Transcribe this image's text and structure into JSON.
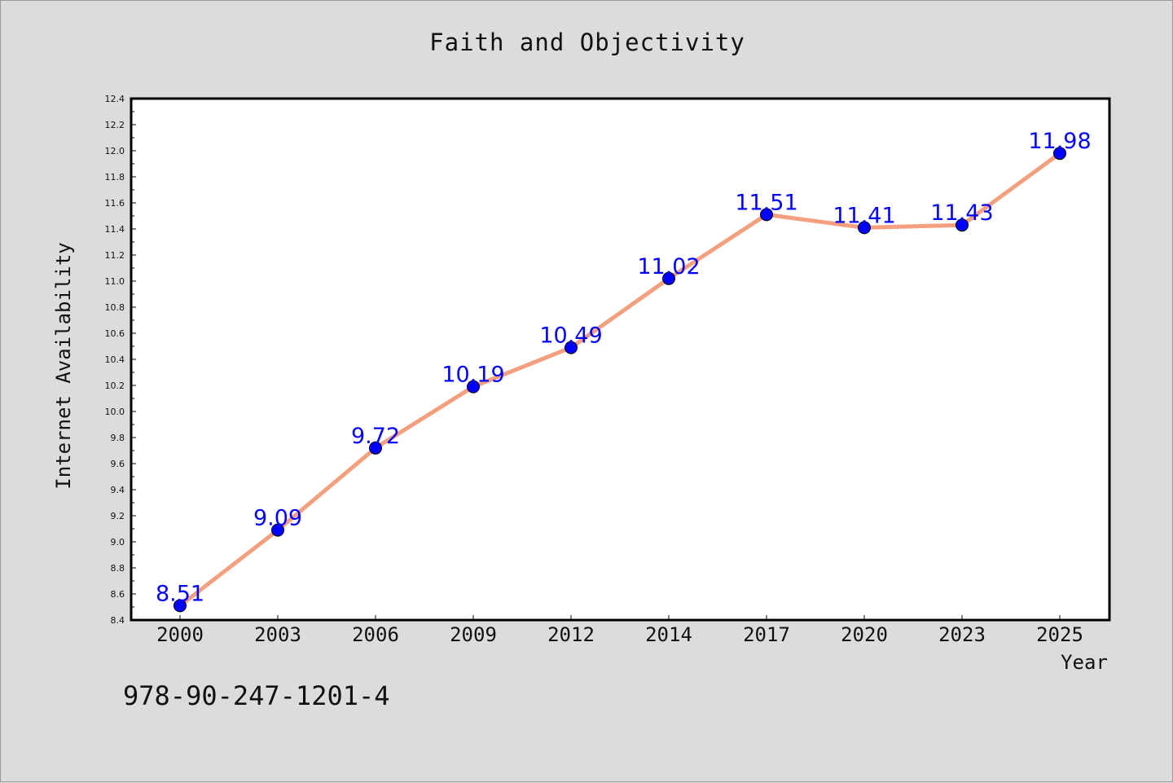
{
  "chart_data": {
    "type": "line",
    "title": "Faith and Objectivity",
    "xlabel": "Year",
    "ylabel": "Internet Availability",
    "categories": [
      "2000",
      "2003",
      "2006",
      "2009",
      "2012",
      "2014",
      "2017",
      "2020",
      "2023",
      "2025"
    ],
    "series": [
      {
        "values": [
          8.51,
          9.09,
          9.72,
          10.19,
          10.49,
          11.02,
          11.51,
          11.41,
          11.43,
          11.98
        ],
        "line_color": "#f4a07e",
        "marker_color": "#0000ff"
      }
    ],
    "data_labels": [
      "8.51",
      "9.09",
      "9.72",
      "10.19",
      "10.49",
      "11.02",
      "11.51",
      "11.41",
      "11.43",
      "11.98"
    ],
    "ylim": [
      8.4,
      12.4
    ],
    "yticks": [
      "8.4",
      "8.6",
      "8.8",
      "9.0",
      "9.2",
      "9.4",
      "9.6",
      "9.8",
      "10.0",
      "10.2",
      "10.4",
      "10.6",
      "10.8",
      "11.0",
      "11.2",
      "11.4",
      "11.6",
      "11.8",
      "12.0",
      "12.2",
      "12.4"
    ],
    "grid": false,
    "background_color": "#dcdcdc",
    "plot_background": "#ffffff"
  },
  "footer_text": "978-90-247-1201-4"
}
